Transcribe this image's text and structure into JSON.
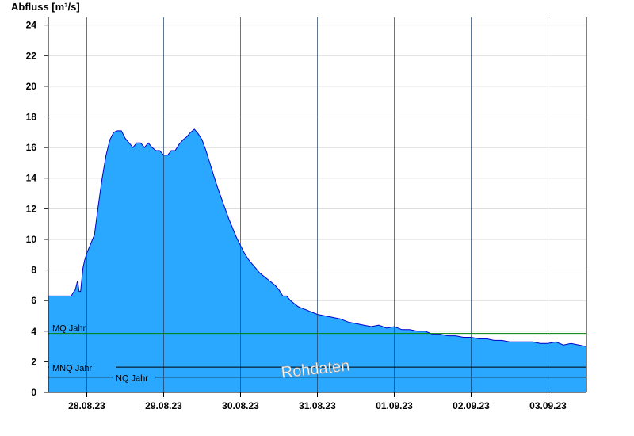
{
  "chart_data": {
    "type": "area",
    "ylabel": "Abfluss [m³/s]",
    "xlabel": "",
    "title": "",
    "ylim": [
      0,
      24.5
    ],
    "yticks": [
      0,
      2,
      4,
      6,
      8,
      10,
      12,
      14,
      16,
      18,
      20,
      22,
      24
    ],
    "grid": true,
    "day_labels": [
      "28.08.23",
      "29.08.23",
      "30.08.23",
      "31.08.23",
      "01.09.23",
      "02.09.23",
      "03.09.23"
    ],
    "x_start_day": 27.5,
    "x_end_day": 34.5,
    "series": [
      {
        "x": [
          27.5,
          27.8,
          27.82,
          27.85,
          27.88,
          27.9,
          27.92,
          27.95,
          27.97,
          28.0,
          28.05,
          28.1,
          28.15,
          28.2,
          28.25,
          28.3,
          28.35,
          28.4,
          28.45,
          28.5,
          28.55,
          28.6,
          28.65,
          28.7,
          28.75,
          28.8,
          28.85,
          28.9,
          28.95,
          29.0,
          29.05,
          29.1,
          29.15,
          29.2,
          29.25,
          29.3,
          29.35,
          29.4,
          29.45,
          29.5,
          29.55,
          29.6,
          29.65,
          29.7,
          29.75,
          29.8,
          29.85,
          29.9,
          29.95,
          30.0,
          30.05,
          30.1,
          30.15,
          30.2,
          30.25,
          30.3,
          30.35,
          30.4,
          30.45,
          30.5,
          30.55,
          30.6,
          30.65,
          30.7,
          30.75,
          30.8,
          30.85,
          30.9,
          30.95,
          31.0,
          31.1,
          31.2,
          31.3,
          31.4,
          31.5,
          31.6,
          31.7,
          31.8,
          31.9,
          32.0,
          32.1,
          32.2,
          32.3,
          32.4,
          32.5,
          32.6,
          32.7,
          32.8,
          32.9,
          33.0,
          33.1,
          33.2,
          33.3,
          33.4,
          33.5,
          33.6,
          33.7,
          33.8,
          33.9,
          34.0,
          34.1,
          34.2,
          34.3,
          34.4,
          34.5
        ],
        "values": [
          6.3,
          6.3,
          6.5,
          6.7,
          7.3,
          6.6,
          6.6,
          8.1,
          8.6,
          9.1,
          9.7,
          10.3,
          12.2,
          14.0,
          15.5,
          16.5,
          17.0,
          17.1,
          17.1,
          16.6,
          16.3,
          16.0,
          16.3,
          16.3,
          16.0,
          16.3,
          16.0,
          15.8,
          15.8,
          15.5,
          15.5,
          15.8,
          15.8,
          16.2,
          16.5,
          16.7,
          17.0,
          17.2,
          16.9,
          16.5,
          15.8,
          15.0,
          14.2,
          13.4,
          12.7,
          12.0,
          11.3,
          10.7,
          10.1,
          9.6,
          9.1,
          8.7,
          8.4,
          8.1,
          7.8,
          7.6,
          7.4,
          7.2,
          7.0,
          6.7,
          6.3,
          6.3,
          6.0,
          5.8,
          5.6,
          5.5,
          5.4,
          5.3,
          5.2,
          5.1,
          5.0,
          4.9,
          4.8,
          4.6,
          4.5,
          4.4,
          4.3,
          4.4,
          4.2,
          4.3,
          4.1,
          4.1,
          4.0,
          4.0,
          3.8,
          3.8,
          3.7,
          3.7,
          3.6,
          3.6,
          3.5,
          3.5,
          3.4,
          3.4,
          3.3,
          3.3,
          3.3,
          3.3,
          3.2,
          3.2,
          3.3,
          3.1,
          3.2,
          3.1,
          3.0
        ]
      }
    ],
    "reference_lines": [
      {
        "label": "MQ Jahr",
        "value": 3.85,
        "color": "#008000"
      },
      {
        "label": "MNQ Jahr",
        "value": 1.65,
        "color": "#000000"
      },
      {
        "label": "NQ Jahr",
        "value": 1.0,
        "color": "#000000"
      }
    ],
    "watermark": "Rohdaten",
    "colors": {
      "fill": "#2aa7ff",
      "line": "#0000c8",
      "grid": "#d8d8d8",
      "axis": "#000000"
    }
  }
}
